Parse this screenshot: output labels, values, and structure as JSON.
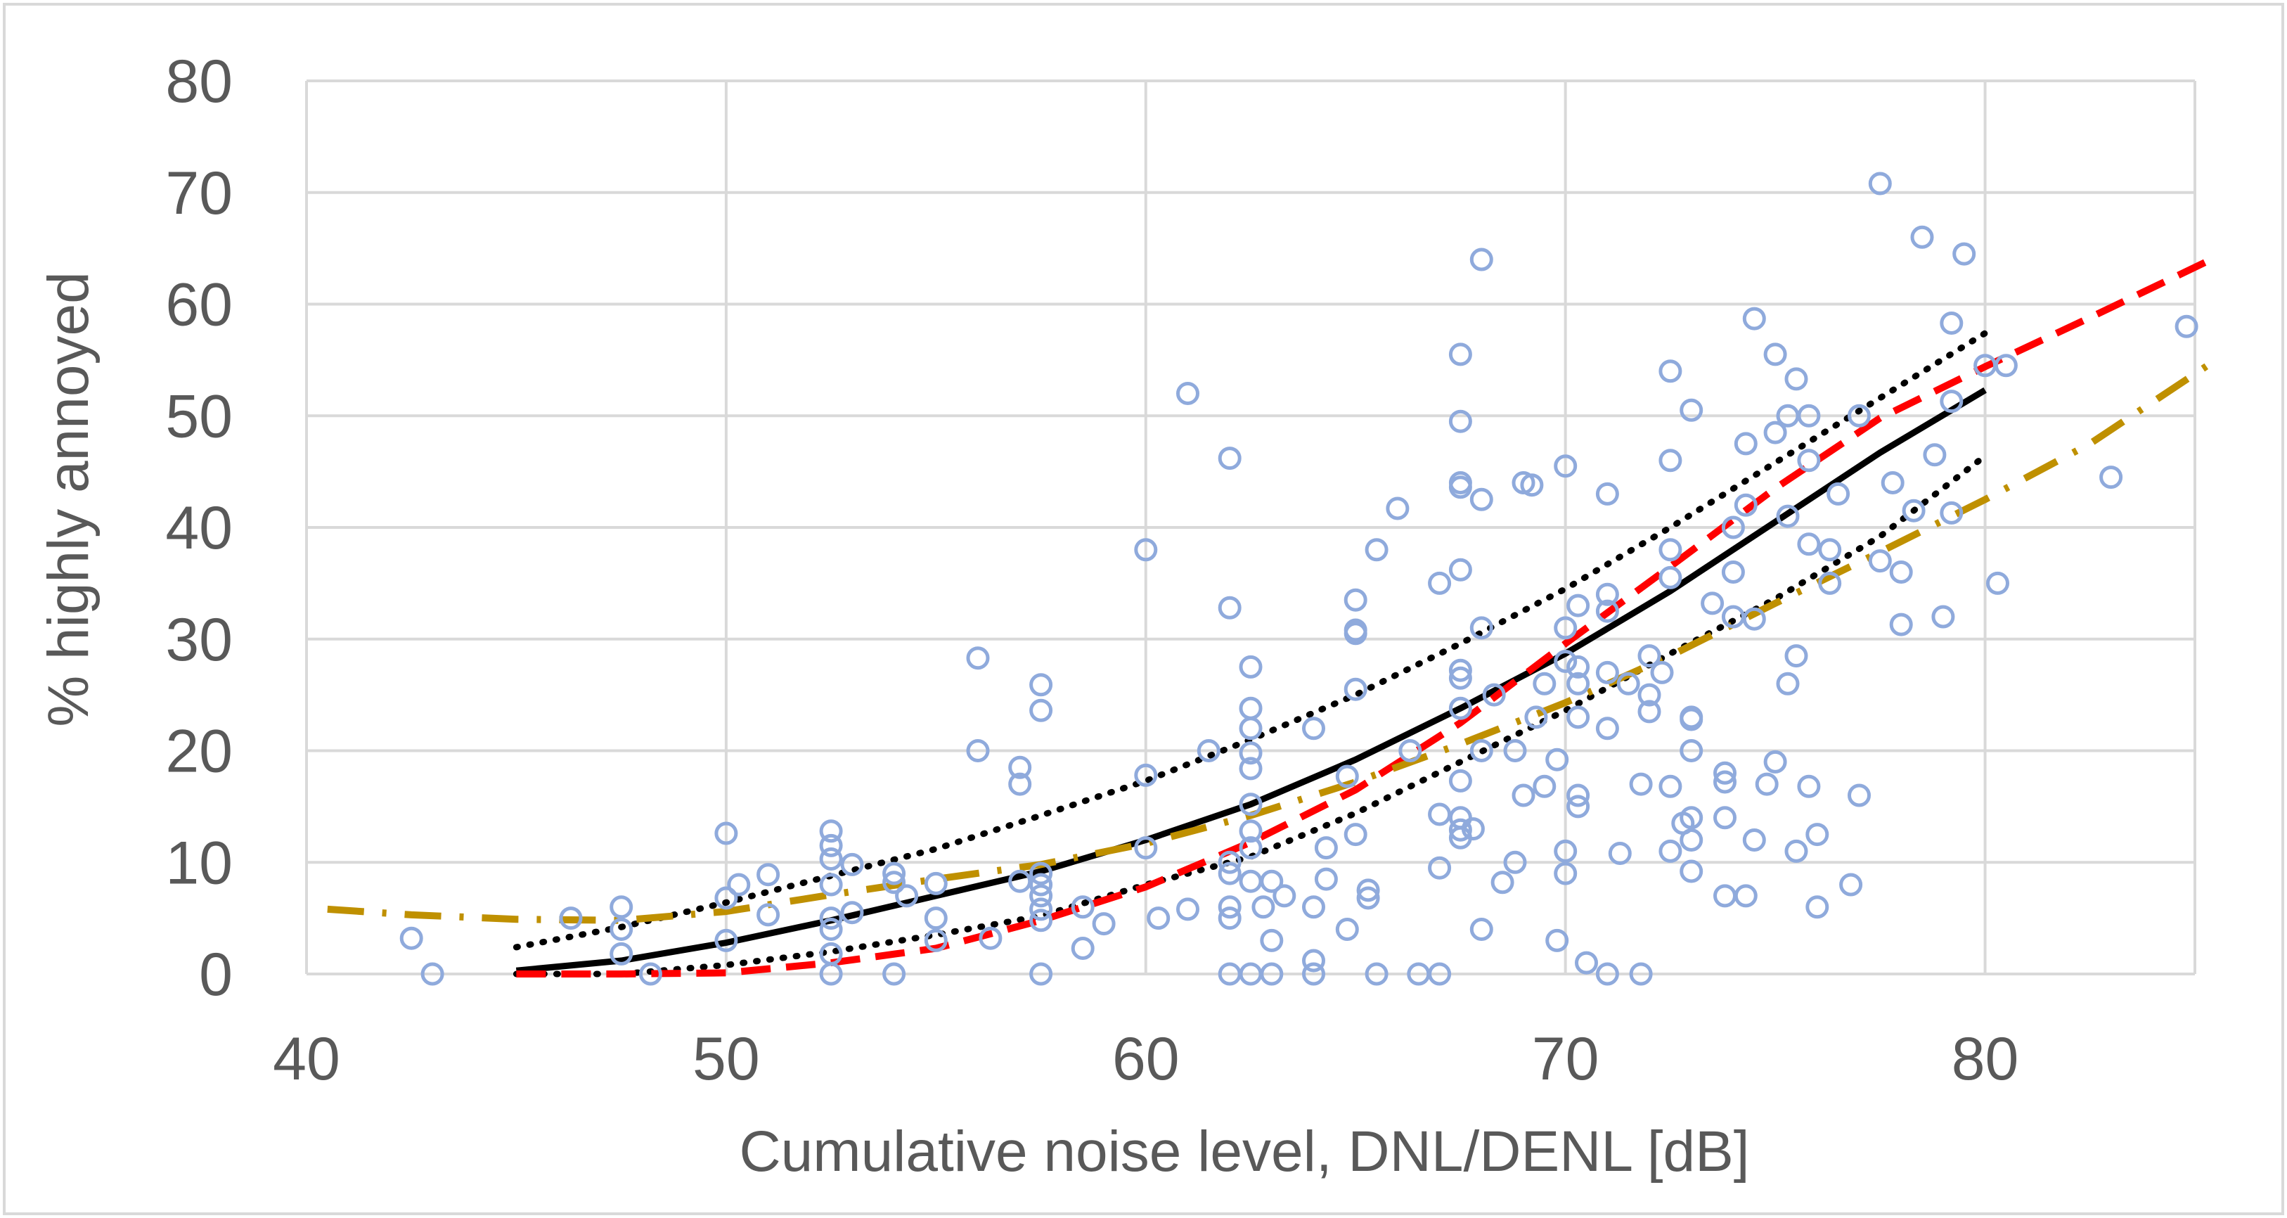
{
  "chart_data": {
    "type": "scatter",
    "title": "",
    "xlabel": "Cumulative noise level, DNL/DENL [dB]",
    "ylabel": "% highly annoyed",
    "xlim": [
      40,
      85
    ],
    "ylim": [
      0,
      80
    ],
    "x_ticks": [
      "40",
      "50",
      "60",
      "70",
      "80"
    ],
    "y_ticks": [
      "0",
      "10",
      "20",
      "30",
      "40",
      "50",
      "60",
      "70",
      "80"
    ],
    "grid": true,
    "legend": "none",
    "colors": {
      "scatter": "#8faadc",
      "fit_solid": "#000000",
      "confidence_dotted": "#000000",
      "red_dashed": "#ff0000",
      "gold_dashdot": "#bf9000",
      "grid": "#d9d9d9",
      "frame": "#d9d9d9",
      "text": "#595959"
    },
    "series": [
      {
        "style": "scatter",
        "points": [
          [
            42.5,
            3.2
          ],
          [
            43,
            0
          ],
          [
            46.3,
            5
          ],
          [
            47.5,
            6
          ],
          [
            47.5,
            4
          ],
          [
            47.5,
            1.8
          ],
          [
            48.2,
            0
          ],
          [
            50,
            12.6
          ],
          [
            50,
            6.8
          ],
          [
            50,
            3
          ],
          [
            50.3,
            8
          ],
          [
            51,
            5.3
          ],
          [
            51,
            8.9
          ],
          [
            52.5,
            12.8
          ],
          [
            52.5,
            11.5
          ],
          [
            52.5,
            10.3
          ],
          [
            52.5,
            8
          ],
          [
            52.5,
            5
          ],
          [
            52.5,
            4
          ],
          [
            52.5,
            1.8
          ],
          [
            52.5,
            0
          ],
          [
            53,
            5.5
          ],
          [
            53,
            9.8
          ],
          [
            54,
            9
          ],
          [
            54,
            8.2
          ],
          [
            54,
            0
          ],
          [
            54.3,
            7
          ],
          [
            55,
            8.1
          ],
          [
            55,
            5
          ],
          [
            55,
            3
          ],
          [
            56,
            28.3
          ],
          [
            56,
            20
          ],
          [
            56.3,
            3.2
          ],
          [
            57,
            18.5
          ],
          [
            57,
            17
          ],
          [
            57,
            8.3
          ],
          [
            57.5,
            25.9
          ],
          [
            57.5,
            23.6
          ],
          [
            57.5,
            9
          ],
          [
            57.5,
            8
          ],
          [
            57.5,
            7
          ],
          [
            57.5,
            5.8
          ],
          [
            57.5,
            4.8
          ],
          [
            57.5,
            0
          ],
          [
            58.5,
            6
          ],
          [
            58.5,
            2.3
          ],
          [
            59,
            4.5
          ],
          [
            60,
            38
          ],
          [
            60,
            17.8
          ],
          [
            60,
            11.3
          ],
          [
            60.3,
            5
          ],
          [
            61,
            52
          ],
          [
            61,
            5.8
          ],
          [
            61.5,
            20
          ],
          [
            62,
            46.2
          ],
          [
            62,
            32.8
          ],
          [
            62,
            10
          ],
          [
            62,
            9
          ],
          [
            62,
            6
          ],
          [
            62,
            5
          ],
          [
            62,
            0
          ],
          [
            62.5,
            27.5
          ],
          [
            62.5,
            23.8
          ],
          [
            62.5,
            22
          ],
          [
            62.5,
            19.8
          ],
          [
            62.5,
            18.4
          ],
          [
            62.5,
            15.2
          ],
          [
            62.5,
            12.8
          ],
          [
            62.5,
            11.3
          ],
          [
            62.5,
            8.3
          ],
          [
            62.5,
            0
          ],
          [
            62.8,
            6
          ],
          [
            63,
            8.3
          ],
          [
            63,
            3
          ],
          [
            63,
            0
          ],
          [
            63.3,
            7
          ],
          [
            64,
            22
          ],
          [
            64,
            6
          ],
          [
            64,
            1.2
          ],
          [
            64,
            0
          ],
          [
            64.3,
            11.3
          ],
          [
            64.3,
            8.5
          ],
          [
            64.8,
            17.7
          ],
          [
            64.8,
            4
          ],
          [
            65,
            33.5
          ],
          [
            65,
            30.8
          ],
          [
            65,
            30.5
          ],
          [
            65,
            25.5
          ],
          [
            65,
            12.5
          ],
          [
            65.3,
            7.5
          ],
          [
            65.3,
            6.8
          ],
          [
            65.5,
            38
          ],
          [
            65.5,
            0
          ],
          [
            66,
            41.7
          ],
          [
            66.3,
            20
          ],
          [
            67,
            35
          ],
          [
            67,
            14.3
          ],
          [
            67,
            9.5
          ],
          [
            67,
            0
          ],
          [
            66.5,
            0
          ],
          [
            67.5,
            55.5
          ],
          [
            67.5,
            49.5
          ],
          [
            67.5,
            44
          ],
          [
            67.5,
            43.6
          ],
          [
            67.5,
            36.2
          ],
          [
            67.5,
            27.2
          ],
          [
            67.5,
            26.5
          ],
          [
            67.5,
            23.8
          ],
          [
            67.5,
            17.3
          ],
          [
            67.5,
            14
          ],
          [
            67.5,
            12.9
          ],
          [
            67.5,
            12.2
          ],
          [
            68,
            64
          ],
          [
            68,
            42.5
          ],
          [
            68,
            31
          ],
          [
            68,
            20
          ],
          [
            68,
            4
          ],
          [
            67.8,
            13
          ],
          [
            68.3,
            25
          ],
          [
            68.5,
            8.2
          ],
          [
            68.8,
            10
          ],
          [
            68.8,
            20
          ],
          [
            69,
            16
          ],
          [
            69,
            44
          ],
          [
            69.2,
            43.8
          ],
          [
            69.3,
            23
          ],
          [
            69.5,
            26
          ],
          [
            69.5,
            16.8
          ],
          [
            69.8,
            3
          ],
          [
            70,
            45.5
          ],
          [
            70,
            31
          ],
          [
            69.8,
            19.2
          ],
          [
            70,
            28
          ],
          [
            70,
            11
          ],
          [
            70,
            9
          ],
          [
            70.3,
            33
          ],
          [
            70.3,
            27.5
          ],
          [
            70.3,
            26
          ],
          [
            70.3,
            23
          ],
          [
            70.3,
            16
          ],
          [
            70.3,
            15
          ],
          [
            70.5,
            1
          ],
          [
            71,
            43
          ],
          [
            71,
            34
          ],
          [
            71,
            32.5
          ],
          [
            71,
            27
          ],
          [
            71,
            22
          ],
          [
            71,
            0
          ],
          [
            71.3,
            10.8
          ],
          [
            71.5,
            26
          ],
          [
            71.8,
            0
          ],
          [
            71.8,
            17
          ],
          [
            72,
            28.5
          ],
          [
            72,
            25
          ],
          [
            72,
            23.5
          ],
          [
            72.3,
            27
          ],
          [
            72.5,
            54
          ],
          [
            72.5,
            46
          ],
          [
            72.5,
            38
          ],
          [
            72.5,
            35.5
          ],
          [
            72.5,
            16.8
          ],
          [
            72.5,
            11
          ],
          [
            73,
            50.5
          ],
          [
            73,
            23
          ],
          [
            73,
            22.8
          ],
          [
            73,
            20
          ],
          [
            73,
            14
          ],
          [
            73,
            12
          ],
          [
            73,
            9.2
          ],
          [
            72.8,
            13.5
          ],
          [
            73.5,
            33.2
          ],
          [
            73.8,
            18
          ],
          [
            73.8,
            17.2
          ],
          [
            73.8,
            14
          ],
          [
            73.8,
            7
          ],
          [
            74,
            40
          ],
          [
            74,
            36
          ],
          [
            74,
            32
          ],
          [
            74.3,
            47.5
          ],
          [
            74.3,
            42
          ],
          [
            74.3,
            7
          ],
          [
            74.5,
            58.7
          ],
          [
            74.5,
            31.8
          ],
          [
            74.5,
            12
          ],
          [
            75,
            55.5
          ],
          [
            75,
            48.5
          ],
          [
            75,
            19
          ],
          [
            74.8,
            17
          ],
          [
            75.3,
            50
          ],
          [
            75.3,
            41
          ],
          [
            75.3,
            26
          ],
          [
            75.5,
            53.3
          ],
          [
            75.5,
            28.5
          ],
          [
            75.5,
            11
          ],
          [
            75.8,
            50
          ],
          [
            75.8,
            46
          ],
          [
            75.8,
            38.5
          ],
          [
            75.8,
            16.8
          ],
          [
            76,
            12.5
          ],
          [
            76,
            6
          ],
          [
            76.3,
            38
          ],
          [
            76.3,
            35
          ],
          [
            76.5,
            43
          ],
          [
            76.8,
            8
          ],
          [
            77,
            50
          ],
          [
            77,
            16
          ],
          [
            77.5,
            70.8
          ],
          [
            77.5,
            37
          ],
          [
            77.8,
            44
          ],
          [
            78,
            36
          ],
          [
            78,
            31.3
          ],
          [
            78.3,
            41.5
          ],
          [
            78.5,
            66
          ],
          [
            78.8,
            46.5
          ],
          [
            79,
            32
          ],
          [
            79.2,
            58.3
          ],
          [
            79.2,
            51.3
          ],
          [
            79.2,
            41.3
          ],
          [
            79.5,
            64.5
          ],
          [
            80,
            54.5
          ],
          [
            80.3,
            35
          ],
          [
            80.5,
            54.5
          ],
          [
            83,
            44.5
          ],
          [
            84.8,
            58
          ]
        ]
      },
      {
        "style": "solid",
        "x": [
          45,
          47.5,
          50,
          52.5,
          55,
          57.5,
          60,
          62.5,
          65,
          67.5,
          70,
          72.5,
          75,
          77.5,
          80
        ],
        "y": [
          0.3,
          1.2,
          2.8,
          4.8,
          7,
          9.2,
          12,
          15.2,
          19.2,
          23.8,
          28.7,
          34.3,
          40.5,
          46.7,
          52.3
        ]
      },
      {
        "style": "dotted",
        "x": [
          45,
          47.5,
          50,
          52.5,
          55,
          57.5,
          60,
          62.5,
          65,
          67.5,
          70,
          72.5,
          75,
          77.5,
          80
        ],
        "y": [
          2.4,
          4.2,
          6.4,
          8.8,
          11.2,
          14.2,
          17.3,
          21,
          25,
          29.6,
          34.5,
          40,
          45.8,
          51.6,
          57.4
        ]
      },
      {
        "style": "dotted",
        "x": [
          45,
          47.5,
          50,
          52.5,
          55,
          57.5,
          60,
          62.5,
          65,
          67.5,
          70,
          72.5,
          75,
          77.5,
          80
        ],
        "y": [
          0,
          0,
          0.8,
          2,
          3.5,
          5.2,
          8,
          10.5,
          14.4,
          19,
          23.6,
          28.7,
          33.6,
          39.2,
          46.4
        ]
      },
      {
        "style": "red-dashed",
        "x": [
          45,
          47.5,
          50,
          52.5,
          55,
          57.5,
          60,
          62.5,
          65,
          67.5,
          70,
          72.5,
          75,
          77.5,
          80,
          82.5,
          85.5
        ],
        "y": [
          0,
          0,
          0.1,
          1,
          2.3,
          4.8,
          7.8,
          11.8,
          16.5,
          22.5,
          29.6,
          36.5,
          43.5,
          49.8,
          54.4,
          58.8,
          64.2
        ]
      },
      {
        "style": "gold-dashdot",
        "x": [
          40.5,
          42.5,
          45,
          47.5,
          50,
          52.5,
          55,
          57.5,
          60,
          62.5,
          65,
          67.5,
          70,
          72.5,
          75,
          77.5,
          80,
          82.5,
          85.5
        ],
        "y": [
          5.8,
          5.3,
          4.9,
          4.8,
          5.6,
          7.1,
          8.5,
          9.8,
          11.7,
          14.2,
          17.2,
          20.6,
          24.3,
          28.5,
          33.2,
          37.8,
          42.5,
          47.5,
          55
        ]
      }
    ]
  }
}
